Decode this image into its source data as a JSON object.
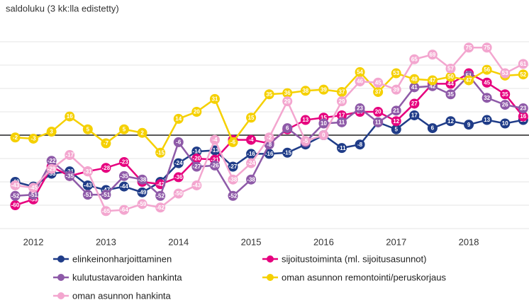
{
  "chart_data": {
    "type": "line",
    "title": "saldoluku (3 kk:lla edistetty)",
    "x": [
      2011.75,
      2012,
      2012.25,
      2012.5,
      2012.75,
      2013,
      2013.25,
      2013.5,
      2013.75,
      2014,
      2014.25,
      2014.5,
      2014.75,
      2015,
      2015.25,
      2015.5,
      2015.75,
      2016,
      2016.25,
      2016.5,
      2016.75,
      2017,
      2017.25,
      2017.5,
      2017.75,
      2018,
      2018.25,
      2018.5,
      2018.75
    ],
    "xlim": [
      2011.54,
      2018.83
    ],
    "xticks": [
      2012,
      2013,
      2014,
      2015,
      2016,
      2017,
      2018
    ],
    "ylim": [
      -80,
      80
    ],
    "yticks": [
      -80,
      -60,
      -40,
      -20,
      0,
      20,
      40,
      60,
      80
    ],
    "grid": true,
    "series": [
      {
        "name": "elinkeinonharjoittaminen",
        "color": "#1f3c88",
        "values": [
          -40,
          -44,
          -33,
          -31,
          -43,
          -47,
          -44,
          -49,
          -40,
          -24,
          -14,
          -13,
          -27,
          -16,
          -16,
          -15,
          -8,
          0,
          -11,
          -8,
          11,
          5,
          17,
          6,
          12,
          9,
          13,
          10,
          13
        ]
      },
      {
        "name": "sijoitustoiminta (ml. sijoitusasunnot)",
        "color": "#e6007e",
        "values": [
          -60,
          -55,
          -27,
          -35,
          -31,
          -28,
          -23,
          -40,
          -42,
          -36,
          -20,
          -21,
          -4,
          -4,
          -7,
          5,
          13,
          15,
          17,
          20,
          20,
          12,
          27,
          44,
          44,
          53,
          45,
          35,
          16
        ]
      },
      {
        "name": "kulutustavaroiden hankinta",
        "color": "#8e5aa8",
        "values": [
          -52,
          -51,
          -22,
          -35,
          -51,
          -51,
          -35,
          -38,
          -52,
          -6,
          -27,
          -26,
          -52,
          -38,
          -8,
          6,
          -6,
          10,
          11,
          23,
          11,
          21,
          41,
          42,
          35,
          51,
          32,
          26,
          23
        ]
      },
      {
        "name": "oman asunnon remontointi/peruskorjaus",
        "color": "#f5d000",
        "values": [
          -2,
          -3,
          3,
          16,
          5,
          -7,
          5,
          2,
          -15,
          14,
          20,
          31,
          -6,
          15,
          35,
          36,
          38,
          39,
          37,
          54,
          37,
          53,
          48,
          47,
          50,
          47,
          56,
          51,
          52
        ]
      },
      {
        "name": "oman asunnon hankinta",
        "color": "#f3a6cf",
        "values": [
          -43,
          -45,
          -29,
          -17,
          -31,
          -65,
          -64,
          -59,
          -62,
          -50,
          -43,
          -4,
          -38,
          -24,
          -2,
          29,
          -5,
          0,
          29,
          46,
          45,
          39,
          65,
          69,
          57,
          75,
          75,
          53,
          61
        ]
      }
    ]
  }
}
